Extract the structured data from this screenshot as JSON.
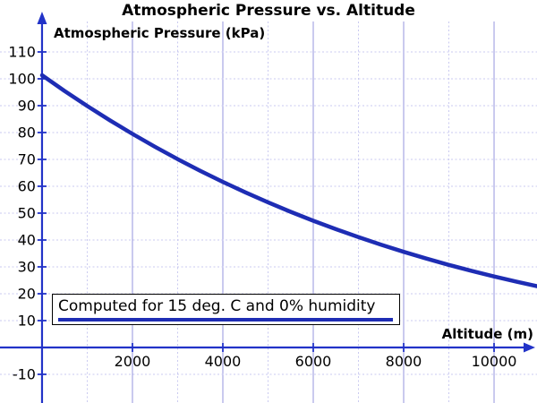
{
  "title": "Atmospheric Pressure vs. Altitude",
  "y_axis_label": "Atmospheric Pressure (kPa)",
  "x_axis_label": "Altitude (m)",
  "annotation": {
    "text": "Computed for 15 deg. C and 0% humidity"
  },
  "colors": {
    "curve": "#1e2db4",
    "axis": "#2233c8",
    "grid_major": "#9595de",
    "grid_minor": "#cacaf0",
    "text": "#000000",
    "annotation_border": "#000000",
    "background": "#ffffff"
  },
  "chart_data": {
    "type": "line",
    "title": "Atmospheric Pressure vs. Altitude",
    "xlabel": "Altitude (m)",
    "ylabel": "Atmospheric Pressure (kPa)",
    "x_ticks": [
      2000,
      4000,
      6000,
      8000,
      10000
    ],
    "y_ticks": [
      -10,
      10,
      20,
      30,
      40,
      50,
      60,
      70,
      80,
      90,
      100,
      110
    ],
    "xlim": [
      -930,
      10950
    ],
    "ylim": [
      -20.67,
      129.33
    ],
    "grid": "vertical major solid every 2000 m, vertical minor dashed every 1000 m, horizontal dashed every 10 kPa",
    "legend_position": "none",
    "annotations": [
      "Computed for 15 deg. C and 0% humidity"
    ],
    "series": [
      {
        "name": "Atmospheric Pressure (kPa)",
        "x": [
          0,
          500,
          1000,
          1500,
          2000,
          2500,
          3000,
          3500,
          4000,
          4500,
          5000,
          5500,
          6000,
          6500,
          7000,
          7500,
          8000,
          8500,
          9000,
          9500,
          10000,
          10500,
          11000
        ],
        "y": [
          101.33,
          95.46,
          89.87,
          84.56,
          79.5,
          74.68,
          70.11,
          65.76,
          61.64,
          57.73,
          54.02,
          50.51,
          47.18,
          44.03,
          41.06,
          38.25,
          35.6,
          33.1,
          30.74,
          28.52,
          26.43,
          24.47,
          22.63
        ]
      }
    ]
  }
}
